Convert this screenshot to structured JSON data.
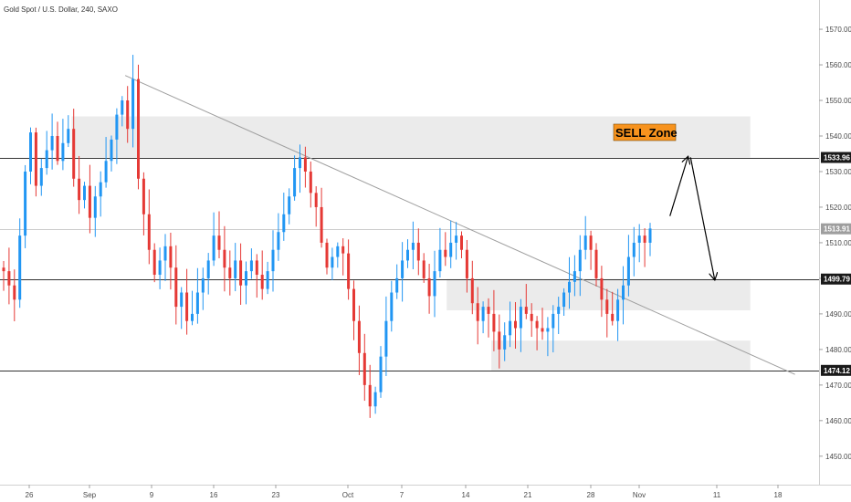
{
  "header": {
    "title": "Gold Spot / U.S. Dollar, 240, SAXO"
  },
  "colors": {
    "up": "#2196f3",
    "down": "#e53935",
    "zone_fill": "#ebebeb",
    "trendline": "#9e9e9e",
    "level_line": "#333333",
    "sell_zone_bg": "#f7931e",
    "axis_text": "#4a4a4a"
  },
  "annotations": {
    "sell_zone_label": "SELL Zone",
    "zones": [
      {
        "x_start": "Aug 30",
        "x_end": "Nov 14",
        "y_low": 1533.96,
        "y_high": 1545.5
      },
      {
        "x_start": "Oct 11",
        "x_end": "Nov 14",
        "y_low": 1491.0,
        "y_high": 1499.79
      },
      {
        "x_start": "Oct 16",
        "x_end": "Nov 14",
        "y_low": 1474.12,
        "y_high": 1482.5
      }
    ],
    "trendline": {
      "from": {
        "x": "Sep 5",
        "y": 1557.0
      },
      "to": {
        "x": "Nov 19",
        "y": 1473.0
      }
    },
    "path_arrows": [
      {
        "x": "Nov 5",
        "y": 1517.5
      },
      {
        "x": "Nov 7",
        "y": 1534.0
      },
      {
        "x": "Nov 10",
        "y": 1499.79
      }
    ]
  },
  "chart_data": {
    "type": "candlestick",
    "title": "Gold Spot / U.S. Dollar, 240, SAXO",
    "ylim": [
      1442,
      1578
    ],
    "y_ticks": [
      1450.0,
      1460.0,
      1470.0,
      1480.0,
      1490.0,
      1500.0,
      1510.0,
      1520.0,
      1530.0,
      1540.0,
      1550.0,
      1560.0,
      1570.0
    ],
    "x_ticks": [
      "26",
      "Sep",
      "9",
      "16",
      "23",
      "Oct",
      "7",
      "14",
      "21",
      "28",
      "Nov",
      "11",
      "18"
    ],
    "price_levels": [
      {
        "label": "1533.96",
        "value": 1533.96,
        "style": "line"
      },
      {
        "label": "1513.91",
        "value": 1513.91,
        "style": "current"
      },
      {
        "label": "1499.79",
        "value": 1499.79,
        "style": "line"
      },
      {
        "label": "1474.12",
        "value": 1474.12,
        "style": "line"
      }
    ],
    "closes": [
      1502,
      1498,
      1494,
      1512,
      1530,
      1541,
      1526,
      1531,
      1536,
      1540,
      1533,
      1538,
      1542,
      1528,
      1522,
      1526,
      1517,
      1523,
      1527,
      1533,
      1539,
      1546,
      1550,
      1542,
      1556,
      1528,
      1518,
      1508,
      1501,
      1505,
      1509,
      1503,
      1492,
      1496,
      1488,
      1490,
      1496,
      1500,
      1505,
      1512,
      1508,
      1503,
      1500,
      1505,
      1498,
      1502,
      1505,
      1501,
      1497,
      1502,
      1508,
      1513,
      1518,
      1523,
      1531,
      1534,
      1530,
      1524,
      1520,
      1510,
      1503,
      1506,
      1509,
      1507,
      1497,
      1488,
      1479,
      1470,
      1464,
      1468,
      1478,
      1488,
      1496,
      1500,
      1505,
      1508,
      1510,
      1505,
      1500,
      1495,
      1502,
      1508,
      1506,
      1510,
      1512,
      1508,
      1500,
      1493,
      1488,
      1492,
      1490,
      1485,
      1480,
      1484,
      1488,
      1486,
      1492,
      1490,
      1488,
      1486,
      1485,
      1486,
      1490,
      1492,
      1496,
      1499,
      1502,
      1508,
      1512,
      1508,
      1500,
      1494,
      1490,
      1488,
      1494,
      1498,
      1506,
      1510,
      1512,
      1510,
      1514
    ]
  }
}
